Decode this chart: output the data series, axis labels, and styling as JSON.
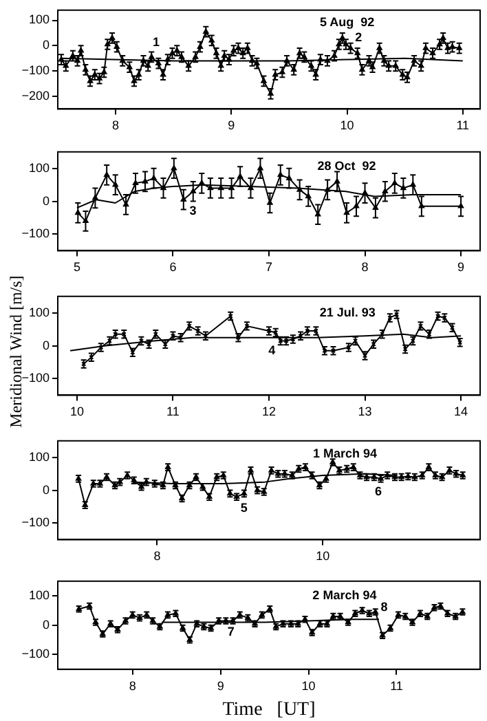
{
  "chart_data": [
    {
      "type": "line",
      "xlim": [
        7.5,
        11.15
      ],
      "ylim": [
        -250,
        140
      ],
      "xticks": [
        8,
        9,
        10,
        11
      ],
      "yticks": [
        -200,
        -100,
        0,
        100
      ],
      "line_style": "solid",
      "legend": false,
      "grid": false,
      "annotations": [
        "5 Aug  92",
        "1",
        "2"
      ],
      "series": [
        {
          "color": "#000000",
          "marker": "triangle",
          "x": [
            7.53,
            7.57,
            7.63,
            7.67,
            7.7,
            7.74,
            7.78,
            7.82,
            7.86,
            7.9,
            7.93,
            7.97,
            8.01,
            8.06,
            8.12,
            8.16,
            8.2,
            8.24,
            8.28,
            8.31,
            8.37,
            8.41,
            8.45,
            8.49,
            8.53,
            8.57,
            8.63,
            8.69,
            8.73,
            8.78,
            8.83,
            8.87,
            8.91,
            8.94,
            8.98,
            9.02,
            9.06,
            9.1,
            9.14,
            9.18,
            9.22,
            9.28,
            9.34,
            9.38,
            9.44,
            9.48,
            9.54,
            9.59,
            9.63,
            9.69,
            9.73,
            9.77,
            9.83,
            9.89,
            9.93,
            9.96,
            9.99,
            10.03,
            10.09,
            10.13,
            10.19,
            10.22,
            10.28,
            10.32,
            10.36,
            10.42,
            10.48,
            10.52,
            10.58,
            10.64,
            10.68,
            10.74,
            10.8,
            10.83,
            10.87,
            10.91,
            10.97
          ],
          "values": [
            -55,
            -80,
            -40,
            -60,
            -20,
            -95,
            -140,
            -115,
            -130,
            -105,
            5,
            30,
            -5,
            -60,
            -85,
            -140,
            -115,
            -60,
            -80,
            -45,
            -70,
            -115,
            -55,
            -30,
            -20,
            -45,
            -80,
            -45,
            -5,
            55,
            20,
            -30,
            -80,
            -40,
            -55,
            -20,
            -10,
            -30,
            -10,
            -60,
            -70,
            -140,
            -190,
            -115,
            -105,
            -60,
            -95,
            -30,
            -45,
            -80,
            -115,
            -55,
            -60,
            -40,
            5,
            30,
            5,
            -10,
            -30,
            -95,
            -60,
            -85,
            -10,
            -60,
            -80,
            -80,
            -115,
            -125,
            -60,
            -80,
            -10,
            -30,
            5,
            30,
            -10,
            -5,
            -10
          ],
          "errors": [
            20,
            20,
            20,
            20,
            20,
            20,
            20,
            20,
            20,
            20,
            20,
            20,
            20,
            20,
            20,
            20,
            20,
            20,
            20,
            20,
            20,
            20,
            20,
            20,
            20,
            20,
            20,
            20,
            20,
            20,
            20,
            20,
            20,
            20,
            20,
            20,
            20,
            20,
            20,
            20,
            20,
            20,
            20,
            20,
            20,
            20,
            20,
            20,
            20,
            20,
            20,
            20,
            20,
            20,
            20,
            20,
            20,
            20,
            20,
            20,
            20,
            20,
            20,
            20,
            20,
            20,
            20,
            20,
            20,
            20,
            20,
            20,
            20,
            20,
            20,
            20,
            20
          ]
        },
        {
          "color": "#000000",
          "x": [
            7.53,
            8.5,
            9.5,
            10.0,
            10.5,
            11.0
          ],
          "values": [
            -50,
            -60,
            -60,
            -55,
            -50,
            -60
          ]
        }
      ]
    },
    {
      "type": "line",
      "xlim": [
        4.8,
        9.2
      ],
      "ylim": [
        -150,
        150
      ],
      "xticks": [
        5,
        6,
        7,
        8,
        9
      ],
      "yticks": [
        -100,
        0,
        100
      ],
      "line_style": "solid",
      "legend": false,
      "grid": false,
      "annotations": [
        "28 Oct  92",
        "3"
      ],
      "series": [
        {
          "color": "#000000",
          "marker": "triangle",
          "x": [
            5.01,
            5.09,
            5.19,
            5.31,
            5.4,
            5.51,
            5.61,
            5.71,
            5.8,
            5.9,
            6.01,
            6.11,
            6.21,
            6.3,
            6.39,
            6.5,
            6.61,
            6.7,
            6.81,
            6.91,
            7.01,
            7.12,
            7.21,
            7.32,
            7.41,
            7.51,
            7.61,
            7.71,
            7.81,
            7.91,
            8.0,
            8.11,
            8.21,
            8.31,
            8.4,
            8.5,
            8.59,
            9.0
          ],
          "values": [
            -35,
            -60,
            10,
            80,
            50,
            -10,
            55,
            60,
            70,
            40,
            100,
            5,
            30,
            55,
            40,
            40,
            40,
            75,
            40,
            100,
            -5,
            80,
            70,
            35,
            15,
            -40,
            35,
            60,
            -35,
            -15,
            25,
            -20,
            30,
            55,
            40,
            50,
            -15,
            -15
          ],
          "errors": [
            30,
            30,
            30,
            30,
            30,
            30,
            30,
            30,
            30,
            30,
            30,
            30,
            30,
            30,
            30,
            30,
            30,
            30,
            30,
            30,
            30,
            30,
            30,
            30,
            30,
            30,
            30,
            30,
            30,
            30,
            30,
            30,
            30,
            30,
            30,
            30,
            30,
            30
          ]
        },
        {
          "color": "#000000",
          "x": [
            5.0,
            5.2,
            5.4,
            5.6,
            5.8,
            6.0,
            6.3,
            6.8,
            7.3,
            7.8,
            8.1,
            8.5,
            9.0
          ],
          "values": [
            -20,
            5,
            -5,
            30,
            40,
            45,
            50,
            45,
            40,
            30,
            15,
            20,
            20
          ]
        }
      ]
    },
    {
      "type": "line",
      "xlim": [
        9.8,
        14.2
      ],
      "ylim": [
        -150,
        150
      ],
      "xticks": [
        10,
        11,
        12,
        13,
        14
      ],
      "yticks": [
        -100,
        0,
        100
      ],
      "line_style": "solid",
      "legend": false,
      "grid": false,
      "ylabel": "Meridional  Wind  [m/s]",
      "annotations": [
        "21 Jul. 93",
        "4"
      ],
      "series": [
        {
          "color": "#000000",
          "marker": "cross",
          "x": [
            10.07,
            10.15,
            10.25,
            10.34,
            10.4,
            10.49,
            10.58,
            10.67,
            10.75,
            10.82,
            10.92,
            11.0,
            11.08,
            11.17,
            11.26,
            11.34,
            11.6,
            11.68,
            11.77,
            12.0,
            12.07,
            12.12,
            12.18,
            12.25,
            12.33,
            12.4,
            12.49,
            12.58,
            12.67,
            12.83,
            12.9,
            13.0,
            13.09,
            13.18,
            13.26,
            13.33,
            13.42,
            13.5,
            13.58,
            13.67,
            13.76,
            13.83,
            13.91,
            13.99
          ],
          "values": [
            -55,
            -35,
            -5,
            15,
            35,
            35,
            -20,
            15,
            5,
            35,
            5,
            30,
            25,
            60,
            45,
            30,
            90,
            25,
            60,
            45,
            40,
            15,
            15,
            20,
            30,
            45,
            45,
            -15,
            -15,
            -5,
            15,
            -30,
            5,
            35,
            85,
            95,
            -10,
            15,
            60,
            35,
            90,
            85,
            55,
            10
          ],
          "errors": [
            12,
            12,
            12,
            12,
            12,
            12,
            12,
            12,
            12,
            12,
            12,
            12,
            12,
            12,
            12,
            12,
            12,
            12,
            12,
            12,
            12,
            12,
            12,
            12,
            12,
            12,
            12,
            12,
            12,
            12,
            12,
            12,
            12,
            12,
            12,
            12,
            12,
            12,
            12,
            12,
            12,
            12,
            12,
            12
          ]
        },
        {
          "color": "#000000",
          "x": [
            9.93,
            10.3,
            10.8,
            11.2,
            12.0,
            12.5,
            13.0,
            13.4,
            13.7,
            14.0
          ],
          "values": [
            -15,
            0,
            15,
            25,
            25,
            25,
            30,
            35,
            25,
            30
          ]
        }
      ]
    },
    {
      "type": "line",
      "xlim": [
        6.8,
        11.9
      ],
      "ylim": [
        -150,
        150
      ],
      "xticks": [
        8,
        10
      ],
      "yticks": [
        -100,
        0,
        100
      ],
      "line_style": "solid",
      "legend": false,
      "grid": false,
      "annotations": [
        "1 March 94",
        "5",
        "6"
      ],
      "series": [
        {
          "color": "#000000",
          "marker": "triangle",
          "x": [
            7.05,
            7.13,
            7.23,
            7.31,
            7.39,
            7.49,
            7.55,
            7.64,
            7.72,
            7.81,
            7.87,
            7.97,
            8.07,
            8.13,
            8.22,
            8.3,
            8.39,
            8.47,
            8.55,
            8.63,
            8.72,
            8.8,
            8.88,
            8.96,
            9.05,
            9.13,
            9.21,
            9.29,
            9.38,
            9.46,
            9.54,
            9.63,
            9.71,
            9.79,
            9.87,
            9.96,
            10.04,
            10.12,
            10.2,
            10.29,
            10.37,
            10.45,
            10.53,
            10.62,
            10.7,
            10.78,
            10.87,
            10.95,
            11.03,
            11.11,
            11.2,
            11.28,
            11.36,
            11.44,
            11.53,
            11.61,
            11.69
          ],
          "values": [
            35,
            -45,
            20,
            20,
            40,
            15,
            25,
            45,
            30,
            10,
            25,
            20,
            15,
            70,
            15,
            -25,
            15,
            40,
            10,
            -20,
            40,
            45,
            -10,
            -20,
            -10,
            60,
            0,
            -5,
            60,
            50,
            50,
            45,
            65,
            70,
            45,
            15,
            35,
            85,
            60,
            65,
            70,
            45,
            40,
            40,
            35,
            45,
            40,
            40,
            42,
            40,
            45,
            70,
            45,
            40,
            60,
            50,
            45
          ],
          "errors": [
            10,
            10,
            10,
            10,
            10,
            10,
            10,
            10,
            10,
            10,
            10,
            10,
            10,
            10,
            10,
            10,
            10,
            10,
            10,
            10,
            10,
            10,
            10,
            10,
            10,
            10,
            10,
            10,
            10,
            10,
            10,
            10,
            10,
            10,
            10,
            10,
            10,
            10,
            10,
            10,
            10,
            10,
            10,
            10,
            10,
            10,
            10,
            10,
            10,
            10,
            10,
            10,
            10,
            10,
            10,
            10,
            10
          ]
        },
        {
          "color": "#000000",
          "x": [
            7.7,
            8.2,
            8.8,
            9.3,
            9.6,
            10.0,
            10.5,
            10.9
          ],
          "values": [
            25,
            20,
            20,
            25,
            35,
            45,
            50,
            45
          ]
        }
      ]
    },
    {
      "type": "line",
      "xlim": [
        7.15,
        11.95
      ],
      "ylim": [
        -150,
        150
      ],
      "xticks": [
        8,
        9,
        10,
        11
      ],
      "yticks": [
        -100,
        0,
        100
      ],
      "line_style": "solid",
      "legend": false,
      "grid": false,
      "xlabel": "Time   [UT]",
      "annotations": [
        "2 March 94",
        "7",
        "8"
      ],
      "series": [
        {
          "color": "#000000",
          "marker": "triangle",
          "x": [
            7.39,
            7.51,
            7.58,
            7.66,
            7.75,
            7.83,
            7.92,
            8.0,
            8.08,
            8.16,
            8.23,
            8.31,
            8.4,
            8.49,
            8.57,
            8.65,
            8.73,
            8.81,
            8.89,
            8.98,
            9.06,
            9.14,
            9.22,
            9.31,
            9.39,
            9.47,
            9.56,
            9.63,
            9.71,
            9.8,
            9.88,
            9.96,
            10.04,
            10.13,
            10.21,
            10.28,
            10.36,
            10.45,
            10.53,
            10.61,
            10.69,
            10.76,
            10.84,
            10.93,
            11.02,
            11.1,
            11.18,
            11.27,
            11.35,
            11.43,
            11.5,
            11.58,
            11.67,
            11.75
          ],
          "values": [
            55,
            65,
            10,
            -30,
            5,
            -15,
            15,
            35,
            25,
            35,
            15,
            -5,
            35,
            40,
            -10,
            -50,
            5,
            -5,
            -10,
            15,
            15,
            15,
            35,
            25,
            5,
            35,
            55,
            -5,
            5,
            5,
            5,
            20,
            -25,
            5,
            5,
            30,
            30,
            10,
            40,
            50,
            40,
            45,
            -35,
            -10,
            35,
            30,
            10,
            40,
            30,
            60,
            65,
            40,
            30,
            45
          ],
          "errors": [
            10,
            10,
            10,
            10,
            10,
            10,
            10,
            10,
            10,
            10,
            10,
            10,
            10,
            10,
            10,
            10,
            10,
            10,
            10,
            10,
            10,
            10,
            10,
            10,
            10,
            10,
            10,
            10,
            10,
            10,
            10,
            10,
            10,
            10,
            10,
            10,
            10,
            10,
            10,
            10,
            10,
            10,
            10,
            10,
            10,
            10,
            10,
            10,
            10,
            10,
            10,
            10,
            10,
            10
          ]
        },
        {
          "color": "#000000",
          "x": [
            8.33,
            9.0,
            9.5,
            10.0,
            10.5,
            10.8
          ],
          "values": [
            10,
            10,
            10,
            15,
            20,
            20
          ]
        }
      ]
    }
  ]
}
